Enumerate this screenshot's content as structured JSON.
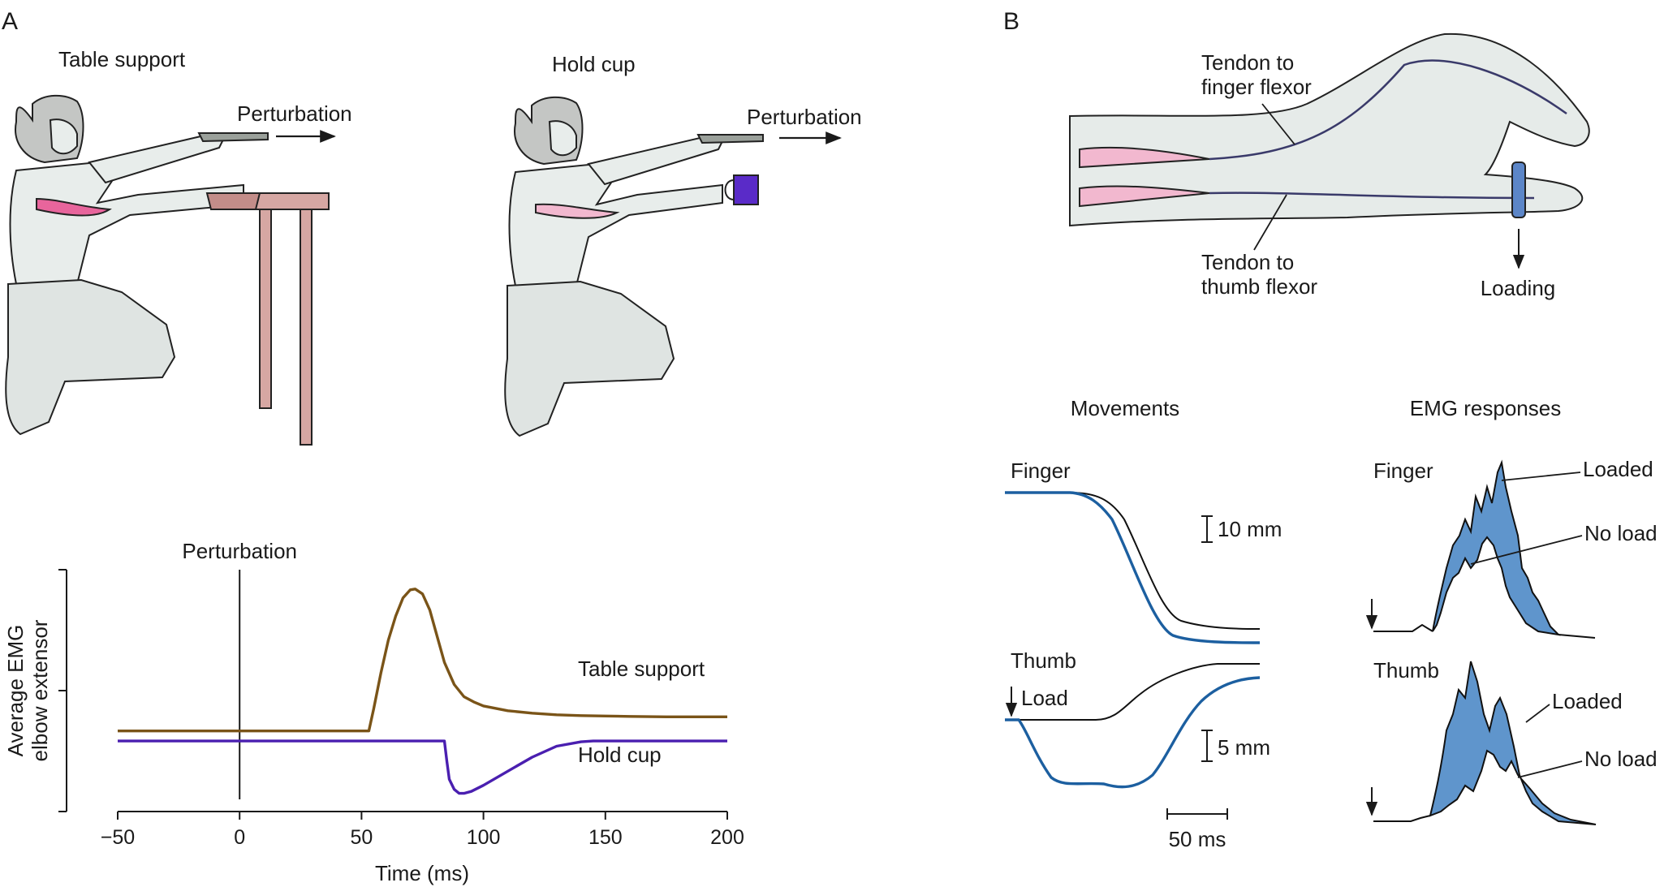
{
  "panel_a": {
    "letter": "A",
    "table_title": "Table support",
    "cup_title": "Hold cup",
    "perturb_left": "Perturbation",
    "perturb_right": "Perturbation"
  },
  "panel_b": {
    "letter": "B",
    "tendon_finger_1": "Tendon to",
    "tendon_finger_2": "finger flexor",
    "tendon_thumb_1": "Tendon to",
    "tendon_thumb_2": "thumb flexor",
    "loading": "Loading",
    "movements": "Movements",
    "emg_responses": "EMG responses",
    "finger": "Finger",
    "thumb": "Thumb",
    "load": "Load",
    "scale_10mm": "10 mm",
    "scale_5mm": "5 mm",
    "scale_50ms": "50 ms",
    "emg_finger": "Finger",
    "emg_thumb": "Thumb",
    "loaded_top": "Loaded",
    "noload_top": "No load",
    "loaded_bottom": "Loaded",
    "noload_bottom": "No load"
  },
  "chart_data": {
    "type": "line",
    "xlabel": "Time (ms)",
    "ylabel_line1": "Average EMG",
    "ylabel_line2": "elbow extensor",
    "xlim": [
      -50,
      200
    ],
    "ylim": [
      -2,
      4
    ],
    "xticks": [
      -50,
      0,
      50,
      100,
      150,
      200
    ],
    "xtick_labels": [
      "−50",
      "0",
      "50",
      "100",
      "150",
      "200"
    ],
    "marker": {
      "x": 0,
      "label": "Perturbation"
    },
    "colors": {
      "table": "#7a5418",
      "cup": "#4a1fb0"
    },
    "series": [
      {
        "name": "Table support",
        "x": [
          -50,
          53,
          55,
          58,
          61,
          64,
          67,
          70,
          72,
          75,
          78,
          81,
          84,
          88,
          92,
          96,
          100,
          110,
          120,
          130,
          140,
          150,
          160,
          175,
          200
        ],
        "y": [
          0,
          0,
          0.55,
          1.45,
          2.25,
          2.85,
          3.3,
          3.5,
          3.52,
          3.4,
          3.0,
          2.35,
          1.7,
          1.15,
          0.85,
          0.72,
          0.62,
          0.5,
          0.44,
          0.4,
          0.38,
          0.37,
          0.36,
          0.35,
          0.35
        ]
      },
      {
        "name": "Hold cup",
        "x": [
          -50,
          84,
          85,
          86,
          88,
          90,
          92,
          95,
          100,
          110,
          120,
          130,
          140,
          145,
          200
        ],
        "y": [
          -0.25,
          -0.25,
          -0.75,
          -1.2,
          -1.45,
          -1.55,
          -1.55,
          -1.5,
          -1.35,
          -1.0,
          -0.65,
          -0.38,
          -0.27,
          -0.25,
          -0.25
        ]
      }
    ]
  }
}
